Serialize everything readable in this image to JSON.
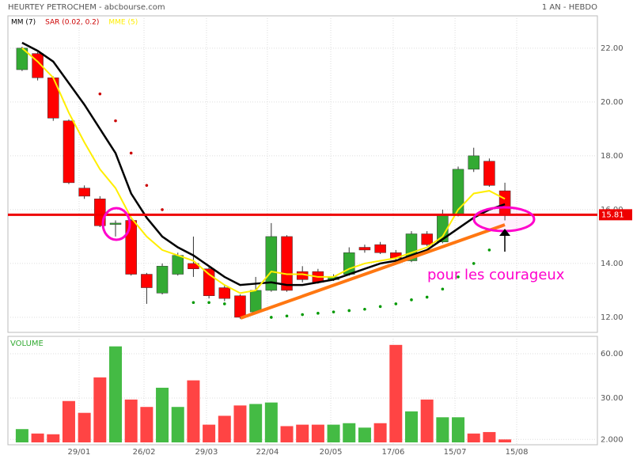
{
  "title": "HEURTEY PETROCHEM - abcbourse.com",
  "period": "1 AN - HEBDO",
  "annotation": "pour les courageux",
  "chart_data": [
    {
      "type": "candlestick",
      "up_color": "#33aa33",
      "down_color": "#ff0000",
      "open": [
        21.2,
        21.8,
        20.9,
        19.3,
        16.8,
        16.4,
        15.45,
        15.6,
        13.6,
        12.9,
        13.6,
        14.0,
        13.8,
        13.1,
        12.8,
        12.2,
        13.0,
        15.0,
        13.7,
        13.7,
        13.4,
        13.6,
        14.6,
        14.7,
        14.4,
        14.1,
        15.1,
        14.8,
        15.8,
        17.5,
        17.8,
        16.7
      ],
      "high": [
        22.05,
        21.85,
        20.95,
        19.35,
        16.9,
        16.5,
        15.6,
        15.65,
        13.65,
        14.0,
        14.4,
        15.0,
        13.9,
        13.2,
        12.85,
        13.5,
        15.5,
        15.05,
        13.9,
        13.8,
        13.6,
        14.6,
        14.7,
        14.8,
        14.5,
        15.2,
        15.2,
        16.0,
        17.6,
        18.3,
        17.9,
        17.0
      ],
      "low": [
        21.15,
        20.8,
        19.3,
        16.95,
        16.4,
        15.35,
        15.0,
        13.55,
        12.5,
        12.85,
        13.55,
        13.5,
        12.7,
        12.6,
        11.95,
        12.15,
        12.95,
        12.95,
        13.3,
        13.25,
        13.35,
        13.55,
        14.4,
        14.35,
        14.0,
        14.05,
        14.65,
        14.75,
        15.75,
        17.4,
        16.85,
        15.6
      ],
      "close": [
        22.0,
        20.9,
        19.4,
        17.0,
        16.5,
        15.4,
        15.5,
        13.6,
        13.1,
        13.9,
        14.3,
        13.8,
        12.8,
        12.7,
        12.0,
        13.0,
        15.0,
        13.0,
        13.4,
        13.3,
        13.5,
        14.4,
        14.5,
        14.4,
        14.2,
        15.1,
        14.7,
        15.8,
        17.5,
        18.0,
        16.9,
        15.8
      ],
      "series": [
        {
          "name": "MM (7)",
          "type": "line",
          "color": "#000000",
          "values": [
            22.2,
            21.9,
            21.5,
            20.7,
            19.9,
            19.0,
            18.1,
            16.6,
            15.7,
            15.0,
            14.6,
            14.3,
            13.9,
            13.5,
            13.2,
            13.25,
            13.3,
            13.2,
            13.2,
            13.3,
            13.4,
            13.6,
            13.8,
            14.0,
            14.1,
            14.3,
            14.5,
            14.9,
            15.3,
            15.7,
            16.0,
            16.2
          ]
        },
        {
          "name": "SAR (0.02, 0.2)",
          "type": "dots",
          "color": "#cc0000",
          "below_color": "#009900",
          "values": [
            null,
            null,
            null,
            null,
            null,
            20.3,
            19.3,
            18.1,
            16.9,
            16.0,
            null,
            12.55,
            12.55,
            12.5,
            null,
            null,
            12.0,
            12.05,
            12.1,
            12.15,
            12.2,
            12.25,
            12.3,
            12.4,
            12.5,
            12.65,
            12.75,
            13.05,
            13.5,
            14.0,
            14.5,
            null
          ]
        },
        {
          "name": "MME (5)",
          "type": "line",
          "color": "#ffee00",
          "values": [
            22.0,
            21.5,
            20.9,
            19.6,
            18.5,
            17.5,
            16.8,
            15.7,
            15.0,
            14.5,
            14.3,
            14.1,
            13.6,
            13.2,
            12.9,
            13.0,
            13.7,
            13.6,
            13.6,
            13.5,
            13.5,
            13.8,
            14.0,
            14.1,
            14.2,
            14.4,
            14.6,
            15.0,
            16.0,
            16.6,
            16.7,
            16.4
          ]
        }
      ],
      "price_line": 15.81,
      "price_line_color": "#ee0000",
      "xlim": [
        -0.91,
        36.94
      ],
      "ylim": [
        11.44,
        23.2
      ],
      "yticks": [
        {
          "value": 12,
          "label": "12.00"
        },
        {
          "value": 14,
          "label": "14.00"
        },
        {
          "value": 16,
          "label": "16.00"
        },
        {
          "value": 18,
          "label": "18.00"
        },
        {
          "value": 20,
          "label": "20.00"
        },
        {
          "value": 22,
          "label": "22.00"
        }
      ],
      "grid": true
    },
    {
      "type": "bar",
      "series": [
        {
          "name": "VOLUME",
          "color": "#33aa33",
          "values": [
            9,
            6,
            5.5,
            28,
            20,
            44,
            65,
            29,
            24,
            37,
            24,
            42,
            12,
            18,
            25,
            26,
            27,
            11,
            12,
            12,
            12,
            13,
            10,
            13,
            66,
            21,
            29,
            17,
            17,
            6,
            7,
            2
          ],
          "colors": [
            "#44bb44",
            "#ff4444",
            "#ff4444",
            "#ff4444",
            "#ff4444",
            "#ff4444",
            "#44bb44",
            "#ff4444",
            "#ff4444",
            "#44bb44",
            "#44bb44",
            "#ff4444",
            "#ff4444",
            "#ff4444",
            "#ff4444",
            "#44bb44",
            "#44bb44",
            "#ff4444",
            "#ff4444",
            "#ff4444",
            "#44bb44",
            "#44bb44",
            "#44bb44",
            "#ff4444",
            "#ff4444",
            "#44bb44",
            "#ff4444",
            "#44bb44",
            "#44bb44",
            "#ff4444",
            "#ff4444",
            "#ff4444"
          ]
        }
      ],
      "xlim": [
        -0.91,
        36.94
      ],
      "ylim": [
        -1.6,
        71.8
      ],
      "yticks": [
        {
          "value": 2,
          "label": "2.000"
        },
        {
          "value": 30,
          "label": "30.00"
        },
        {
          "value": 60,
          "label": "60.00"
        }
      ],
      "xticks": [
        {
          "value": 3.66,
          "label": "29/01"
        },
        {
          "value": 7.83,
          "label": "26/02"
        },
        {
          "value": 11.84,
          "label": "29/03"
        },
        {
          "value": 15.75,
          "label": "22/04"
        },
        {
          "value": 19.82,
          "label": "20/05"
        },
        {
          "value": 23.83,
          "label": "17/06"
        },
        {
          "value": 27.8,
          "label": "15/07"
        },
        {
          "value": 31.76,
          "label": "15/08"
        }
      ],
      "grid": true
    }
  ]
}
